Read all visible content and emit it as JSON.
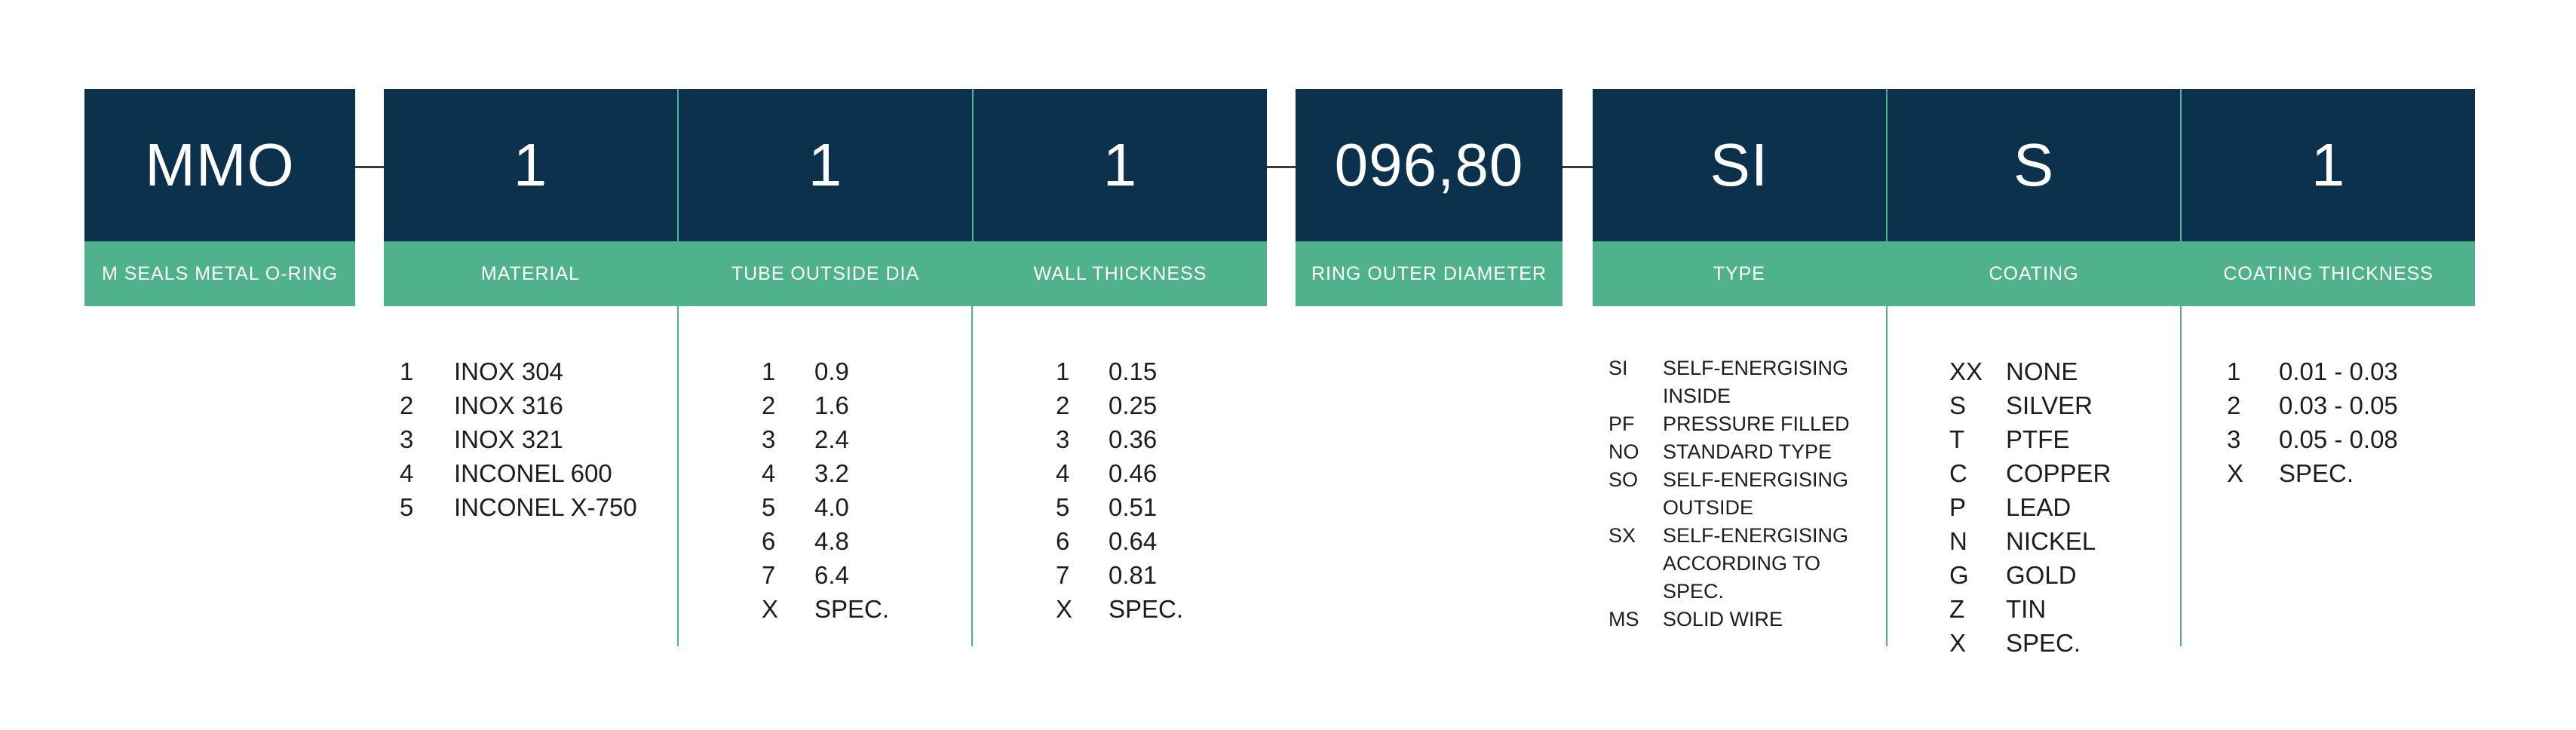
{
  "colors": {
    "navy": "#0B314D",
    "green": "#4FB28C",
    "connector_line": "#3a3a3a",
    "list_text": "#1D1D1B"
  },
  "code_builder": {
    "product": {
      "code": "MMO",
      "label": "M SEALS METAL O-RING"
    },
    "group1": [
      {
        "code": "1",
        "label": "MATERIAL"
      },
      {
        "code": "1",
        "label": "TUBE OUTSIDE DIA"
      },
      {
        "code": "1",
        "label": "WALL THICKNESS"
      }
    ],
    "diameter": {
      "code": "096,80",
      "label": "RING OUTER DIAMETER"
    },
    "group2": [
      {
        "code": "SI",
        "label": "TYPE"
      },
      {
        "code": "S",
        "label": "COATING"
      },
      {
        "code": "1",
        "label": "COATING THICKNESS"
      }
    ]
  },
  "option_lists": {
    "material": {
      "items": [
        {
          "code": "1",
          "lines": [
            "INOX 304"
          ]
        },
        {
          "code": "2",
          "lines": [
            "INOX 316"
          ]
        },
        {
          "code": "3",
          "lines": [
            "INOX 321"
          ]
        },
        {
          "code": "4",
          "lines": [
            "INCONEL 600"
          ]
        },
        {
          "code": "5",
          "lines": [
            "INCONEL X-750"
          ]
        }
      ]
    },
    "tube_outside_dia": {
      "items": [
        {
          "code": "1",
          "lines": [
            "0.9"
          ]
        },
        {
          "code": "2",
          "lines": [
            "1.6"
          ]
        },
        {
          "code": "3",
          "lines": [
            "2.4"
          ]
        },
        {
          "code": "4",
          "lines": [
            "3.2"
          ]
        },
        {
          "code": "5",
          "lines": [
            "4.0"
          ]
        },
        {
          "code": "6",
          "lines": [
            "4.8"
          ]
        },
        {
          "code": "7",
          "lines": [
            "6.4"
          ]
        },
        {
          "code": "X",
          "lines": [
            "SPEC."
          ]
        }
      ]
    },
    "wall_thickness": {
      "items": [
        {
          "code": "1",
          "lines": [
            "0.15"
          ]
        },
        {
          "code": "2",
          "lines": [
            "0.25"
          ]
        },
        {
          "code": "3",
          "lines": [
            "0.36"
          ]
        },
        {
          "code": "4",
          "lines": [
            "0.46"
          ]
        },
        {
          "code": "5",
          "lines": [
            "0.51"
          ]
        },
        {
          "code": "6",
          "lines": [
            "0.64"
          ]
        },
        {
          "code": "7",
          "lines": [
            "0.81"
          ]
        },
        {
          "code": "X",
          "lines": [
            "SPEC."
          ]
        }
      ]
    },
    "type": {
      "items": [
        {
          "code": "SI",
          "lines": [
            "SELF-ENERGISING",
            "INSIDE"
          ]
        },
        {
          "code": "PF",
          "lines": [
            "PRESSURE FILLED"
          ]
        },
        {
          "code": "NO",
          "lines": [
            "STANDARD TYPE"
          ]
        },
        {
          "code": "SO",
          "lines": [
            "SELF-ENERGISING",
            "OUTSIDE"
          ]
        },
        {
          "code": "SX",
          "lines": [
            "SELF-ENERGISING",
            "ACCORDING TO",
            "SPEC."
          ]
        },
        {
          "code": "MS",
          "lines": [
            "SOLID WIRE"
          ]
        }
      ]
    },
    "coating": {
      "items": [
        {
          "code": "XX",
          "lines": [
            "NONE"
          ]
        },
        {
          "code": "S",
          "lines": [
            "SILVER"
          ]
        },
        {
          "code": "T",
          "lines": [
            "PTFE"
          ]
        },
        {
          "code": "C",
          "lines": [
            "COPPER"
          ]
        },
        {
          "code": "P",
          "lines": [
            "LEAD"
          ]
        },
        {
          "code": "N",
          "lines": [
            "NICKEL"
          ]
        },
        {
          "code": "G",
          "lines": [
            "GOLD"
          ]
        },
        {
          "code": "Z",
          "lines": [
            "TIN"
          ]
        },
        {
          "code": "X",
          "lines": [
            "SPEC."
          ]
        }
      ]
    },
    "coating_thickness": {
      "items": [
        {
          "code": "1",
          "lines": [
            "0.01 - 0.03"
          ]
        },
        {
          "code": "2",
          "lines": [
            "0.03 - 0.05"
          ]
        },
        {
          "code": "3",
          "lines": [
            "0.05 - 0.08"
          ]
        },
        {
          "code": "X",
          "lines": [
            "SPEC."
          ]
        }
      ]
    }
  }
}
